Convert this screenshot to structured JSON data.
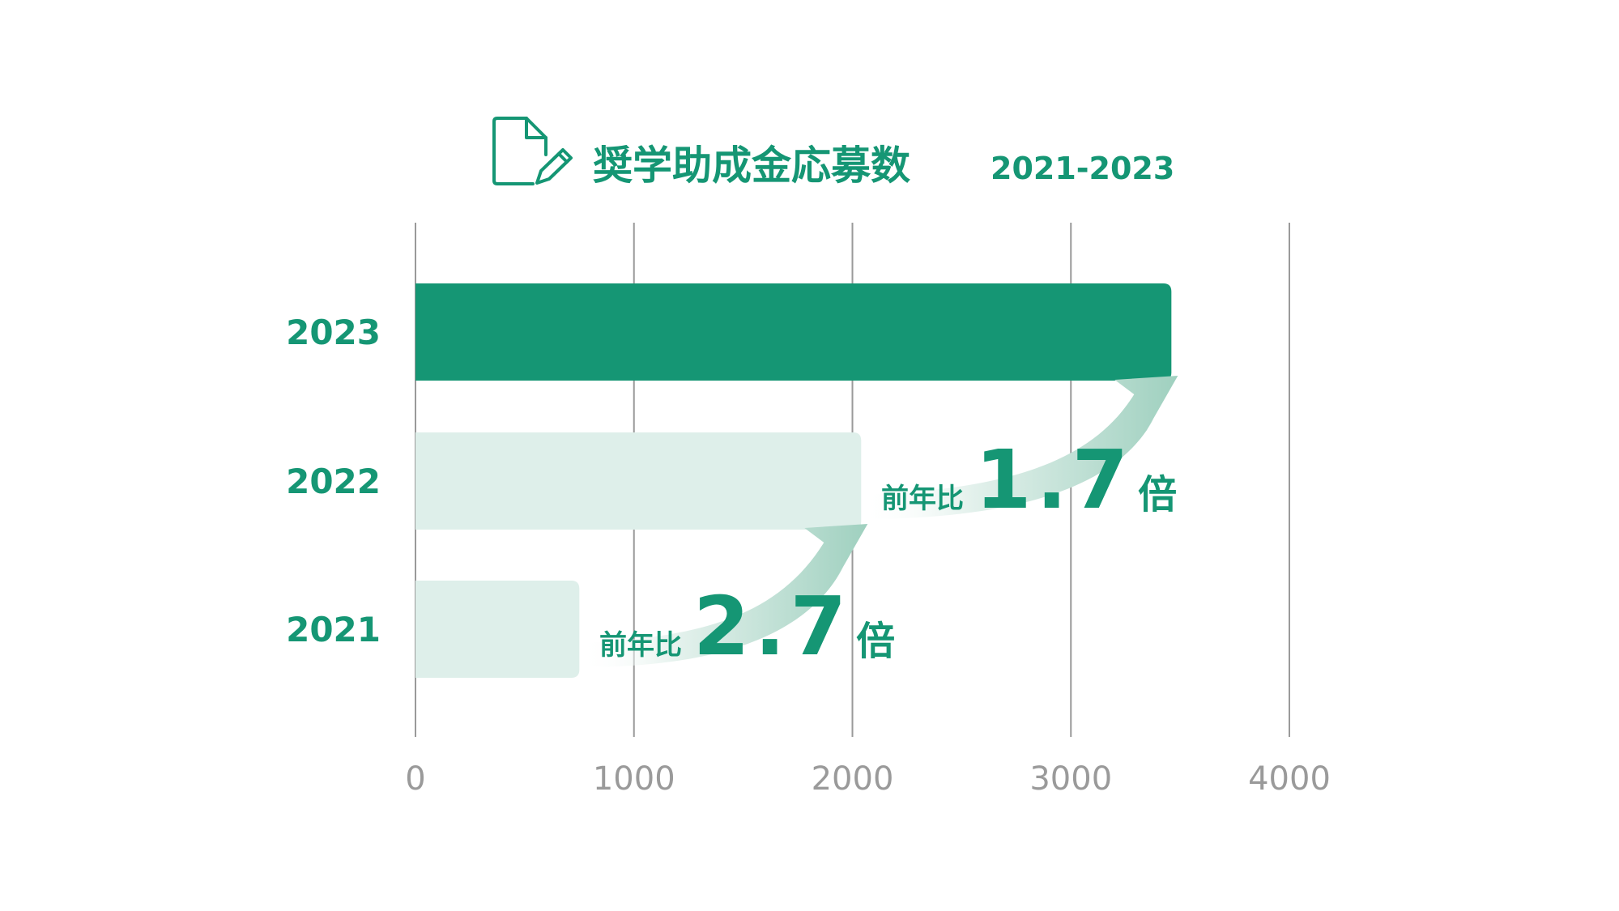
{
  "colors": {
    "accent": "#159674",
    "bar_light": "#deefea",
    "grid": "#9a9a9a",
    "tick": "#9a9a9a"
  },
  "header": {
    "icon": "document-edit-icon",
    "title": "奨学助成金応募数",
    "range": "2021-2023"
  },
  "chart_data": {
    "type": "bar",
    "orientation": "horizontal",
    "categories": [
      "2023",
      "2022",
      "2021"
    ],
    "values": [
      3460,
      2040,
      750
    ],
    "highlight": "2023",
    "xlim": [
      0,
      4000
    ],
    "xticks": [
      "0",
      "1000",
      "2000",
      "3000",
      "4000"
    ],
    "grid": true,
    "annotations": [
      {
        "from": "2021",
        "to": "2022",
        "prefix": "前年比",
        "value": "2.7",
        "suffix": "倍"
      },
      {
        "from": "2022",
        "to": "2023",
        "prefix": "前年比",
        "value": "1.7",
        "suffix": "倍"
      }
    ]
  }
}
